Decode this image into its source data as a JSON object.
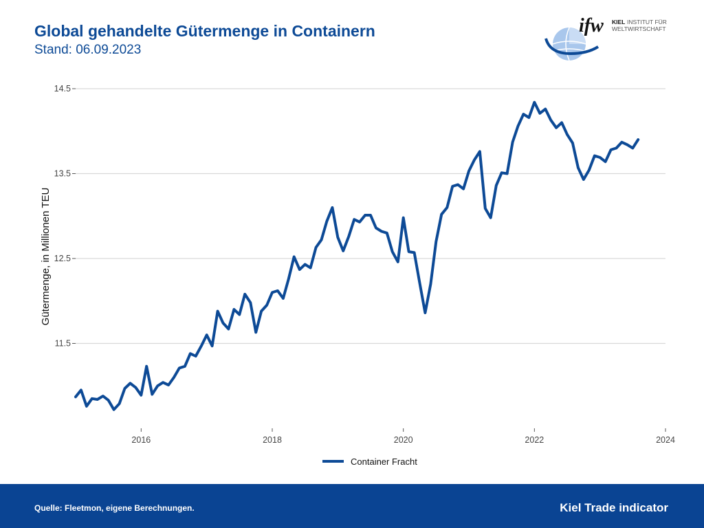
{
  "header": {
    "title": "Global gehandelte Gütermenge in Containern",
    "subtitle": "Stand: 06.09.2023"
  },
  "logo": {
    "text_main": "ifw",
    "text_kiel": "KIEL",
    "text_line1": "INSTITUT FÜR",
    "text_line2": "WELTWIRTSCHAFT",
    "icon": "globe-icon"
  },
  "footer": {
    "source": "Quelle: Fleetmon, eigene Berechnungen.",
    "brand": "Kiel Trade indicator"
  },
  "colors": {
    "line": "#0d4a96",
    "footer_bg": "#0a4493",
    "grid": "#d9d9d9"
  },
  "chart_data": {
    "type": "line",
    "title": "",
    "xlabel": "",
    "ylabel": "Gütermenge, in Millionen TEU",
    "xlim": [
      2015.0,
      2024.0
    ],
    "ylim": [
      10.5,
      14.5
    ],
    "x_ticks": [
      2016,
      2018,
      2020,
      2022,
      2024
    ],
    "y_ticks": [
      11.5,
      12.5,
      13.5,
      14.5
    ],
    "y_tick_labels": [
      "11.5",
      "12.5",
      "13.5",
      "14.5"
    ],
    "grid": "horizontal",
    "legend_position": "bottom",
    "series": [
      {
        "name": "Container Fracht",
        "x": [
          2015.0,
          2015.083,
          2015.167,
          2015.25,
          2015.333,
          2015.417,
          2015.5,
          2015.583,
          2015.667,
          2015.75,
          2015.833,
          2015.917,
          2016.0,
          2016.083,
          2016.167,
          2016.25,
          2016.333,
          2016.417,
          2016.5,
          2016.583,
          2016.667,
          2016.75,
          2016.833,
          2016.917,
          2017.0,
          2017.083,
          2017.167,
          2017.25,
          2017.333,
          2017.417,
          2017.5,
          2017.583,
          2017.667,
          2017.75,
          2017.833,
          2017.917,
          2018.0,
          2018.083,
          2018.167,
          2018.25,
          2018.333,
          2018.417,
          2018.5,
          2018.583,
          2018.667,
          2018.75,
          2018.833,
          2018.917,
          2019.0,
          2019.083,
          2019.167,
          2019.25,
          2019.333,
          2019.417,
          2019.5,
          2019.583,
          2019.667,
          2019.75,
          2019.833,
          2019.917,
          2020.0,
          2020.083,
          2020.167,
          2020.25,
          2020.333,
          2020.417,
          2020.5,
          2020.583,
          2020.667,
          2020.75,
          2020.833,
          2020.917,
          2021.0,
          2021.083,
          2021.167,
          2021.25,
          2021.333,
          2021.417,
          2021.5,
          2021.583,
          2021.667,
          2021.75,
          2021.833,
          2021.917,
          2022.0,
          2022.083,
          2022.167,
          2022.25,
          2022.333,
          2022.417,
          2022.5,
          2022.583,
          2022.667,
          2022.75,
          2022.833,
          2022.917,
          2023.0,
          2023.083,
          2023.167,
          2023.25,
          2023.333,
          2023.417,
          2023.5,
          2023.583
        ],
        "values": [
          10.87,
          10.95,
          10.76,
          10.85,
          10.84,
          10.88,
          10.83,
          10.72,
          10.79,
          10.97,
          11.03,
          10.98,
          10.89,
          11.23,
          10.9,
          11.0,
          11.04,
          11.01,
          11.1,
          11.21,
          11.23,
          11.38,
          11.35,
          11.47,
          11.6,
          11.47,
          11.88,
          11.74,
          11.67,
          11.9,
          11.84,
          12.08,
          11.98,
          11.63,
          11.88,
          11.95,
          12.1,
          12.12,
          12.03,
          12.26,
          12.52,
          12.37,
          12.43,
          12.39,
          12.63,
          12.72,
          12.94,
          13.1,
          12.75,
          12.59,
          12.76,
          12.96,
          12.93,
          13.01,
          13.01,
          12.86,
          12.82,
          12.8,
          12.58,
          12.46,
          12.98,
          12.58,
          12.57,
          12.21,
          11.86,
          12.2,
          12.7,
          13.02,
          13.1,
          13.35,
          13.37,
          13.32,
          13.53,
          13.66,
          13.76,
          13.09,
          12.98,
          13.36,
          13.51,
          13.5,
          13.87,
          14.06,
          14.2,
          14.16,
          14.34,
          14.21,
          14.26,
          14.13,
          14.04,
          14.1,
          13.96,
          13.86,
          13.57,
          13.43,
          13.54,
          13.71,
          13.69,
          13.64,
          13.78,
          13.8,
          13.87,
          13.84,
          13.8,
          13.9
        ]
      }
    ]
  }
}
